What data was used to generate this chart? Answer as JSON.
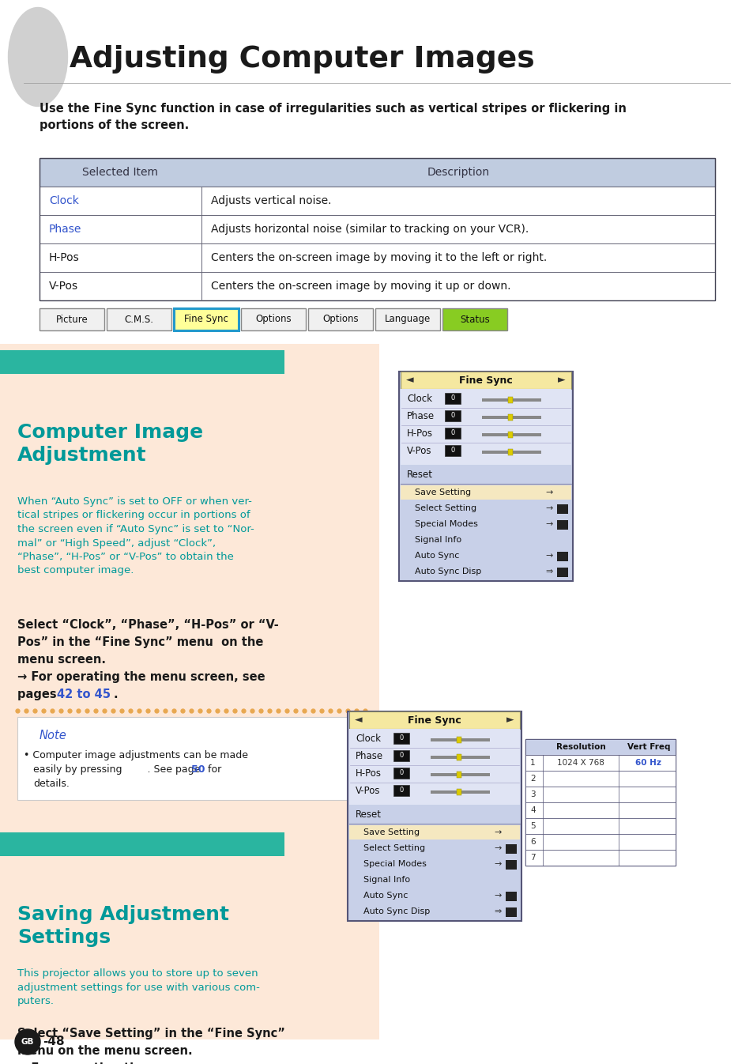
{
  "page_bg": "#ffffff",
  "peach_bg": "#fde8d8",
  "teal_header": "#2ab5a0",
  "title_text": "Adjusting Computer Images",
  "title_color": "#1a1a1a",
  "bold_intro": "Use the Fine Sync function in case of irregularities such as vertical stripes or flickering in\nportions of the screen.",
  "table_header_bg": "#c0cce0",
  "table_header_texts": [
    "Selected Item",
    "Description"
  ],
  "table_rows": [
    [
      "Clock",
      "#3355cc",
      "Adjusts vertical noise."
    ],
    [
      "Phase",
      "#3355cc",
      "Adjusts horizontal noise (similar to tracking on your VCR)."
    ],
    [
      "H-Pos",
      "#1a1a1a",
      "Centers the on-screen image by moving it to the left or right."
    ],
    [
      "V-Pos",
      "#1a1a1a",
      "Centers the on-screen image by moving it up or down."
    ]
  ],
  "section1_title": "Computer Image\nAdjustment",
  "section1_title_color": "#009999",
  "section1_body_teal": "When “Auto Sync” is set to OFF or when ver-\ntical stripes or flickering occur in portions of\nthe screen even if “Auto Sync” is set to “Nor-\nmal” or “High Speed”, adjust “Clock”,\n“Phase”, “H-Pos” or “V-Pos” to obtain the\nbest computer image.",
  "section2_title": "Saving Adjustment\nSettings",
  "section2_title_color": "#009999",
  "section2_body_teal": "This projector allows you to store up to seven\nadjustment settings for use with various com-\nputers.",
  "note_color": "#3355cc",
  "footer_text": "-48",
  "link_color": "#3355cc",
  "dlg_bg": "#c8d0e8",
  "dlg_title_bg": "#f5e8a0",
  "dlg_row_bg": "#d8dff0",
  "dlg_reset_bg": "#c8d0e8",
  "dlg_sub_bg": "#e8ecf8",
  "dlg_sub_highlight": "#f5e8c0",
  "res_table_bg": "#d0d8f0",
  "res_header_bg": "#c8d0e8"
}
